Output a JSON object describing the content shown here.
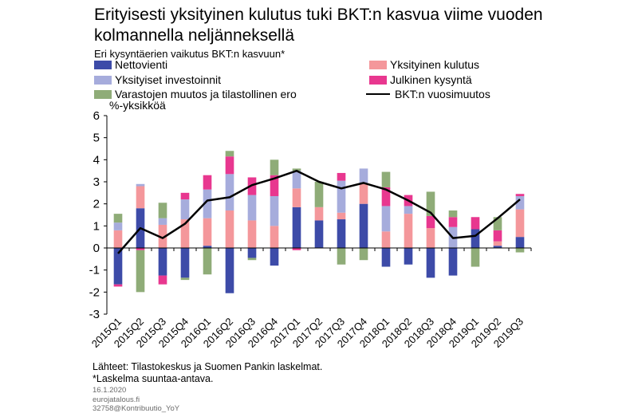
{
  "title": "Erityisesti yksityinen kulutus tuki BKT:n kasvua viime vuoden kolmannella neljänneksellä",
  "subtitle": "Eri kysyntäerien  vaikutus BKT:n kasvuun*",
  "unit_label": "%-yksikköä",
  "legend": [
    {
      "key": "net_exports",
      "label": "Nettovienti",
      "color": "#3d4ba8"
    },
    {
      "key": "private_consumption",
      "label": "Yksityinen kulutus",
      "color": "#f4979b"
    },
    {
      "key": "private_investment",
      "label": "Yksityiset investoinnit",
      "color": "#a6acdc"
    },
    {
      "key": "public_demand",
      "label": "Julkinen kysyntä",
      "color": "#e8378f"
    },
    {
      "key": "inventories",
      "label": "Varastojen muutos ja tilastollinen ero",
      "color": "#8fac78"
    },
    {
      "key": "gdp",
      "label": "BKT:n vuosimuutos",
      "color": "#000000"
    }
  ],
  "chart_data": {
    "type": "bar",
    "stacked": true,
    "ylim": [
      -3,
      6
    ],
    "yticks": [
      -3,
      -2,
      -1,
      0,
      1,
      2,
      3,
      4,
      5,
      6
    ],
    "ylabel": "%-yksikköä",
    "categories": [
      "2015Q1",
      "2015Q2",
      "2015Q3",
      "2015Q4",
      "2016Q1",
      "2016Q2",
      "2016Q3",
      "2016Q4",
      "2017Q1",
      "2017Q2",
      "2017Q3",
      "2017Q4",
      "2018Q1",
      "2018Q2",
      "2018Q3",
      "2018Q4",
      "2019Q1",
      "2019Q2",
      "2019Q3"
    ],
    "series": [
      {
        "name": "Nettovienti",
        "key": "net_exports",
        "values": [
          -1.65,
          1.8,
          -1.25,
          -1.35,
          0.1,
          -2.05,
          -0.45,
          -0.8,
          1.85,
          1.25,
          1.3,
          2.0,
          -0.85,
          -0.75,
          -1.35,
          -1.25,
          0.85,
          0.1,
          0.5
        ]
      },
      {
        "name": "Yksityinen kulutus",
        "key": "private_consumption",
        "values": [
          0.8,
          1.0,
          1.05,
          1.3,
          1.25,
          1.7,
          1.25,
          1.0,
          0.85,
          0.6,
          0.3,
          0.95,
          0.75,
          1.55,
          0.9,
          0.0,
          0.0,
          0.2,
          1.25
        ]
      },
      {
        "name": "Yksityiset investoinnit",
        "key": "private_investment",
        "values": [
          0.35,
          0.1,
          0.3,
          0.9,
          1.3,
          1.65,
          1.15,
          1.35,
          0.8,
          0.0,
          1.45,
          0.65,
          1.15,
          0.35,
          0.0,
          0.95,
          0.0,
          0.0,
          0.6
        ]
      },
      {
        "name": "Julkinen kysyntä",
        "key": "public_demand",
        "values": [
          -0.1,
          -0.1,
          -0.4,
          0.3,
          0.65,
          0.8,
          0.8,
          0.95,
          -0.1,
          0.0,
          0.35,
          0.0,
          0.85,
          0.5,
          0.55,
          0.45,
          0.55,
          0.5,
          0.1
        ]
      },
      {
        "name": "Varastojen muutos ja tilastollinen ero",
        "key": "inventories",
        "values": [
          0.4,
          -1.9,
          0.7,
          -0.1,
          -1.2,
          0.25,
          -0.1,
          0.7,
          0.1,
          1.15,
          -0.75,
          -0.55,
          0.7,
          0.0,
          1.1,
          0.3,
          -0.85,
          0.6,
          -0.2
        ]
      },
      {
        "name": "BKT:n vuosimuutos",
        "key": "gdp",
        "type": "line",
        "values": [
          -0.25,
          0.9,
          0.45,
          1.1,
          2.15,
          2.3,
          2.85,
          3.15,
          3.5,
          3.0,
          2.7,
          2.95,
          2.65,
          2.15,
          1.6,
          0.45,
          0.55,
          1.35,
          2.2
        ]
      }
    ]
  },
  "sources": "Lähteet: Tilastokeskus ja Suomen Pankin laskelmat.",
  "footnote": "*Laskelma suuntaa-antava.",
  "meta": {
    "date": "16.1.2020",
    "site": "eurojatalous.fi",
    "id": "32758@Kontribuutio_YoY"
  }
}
